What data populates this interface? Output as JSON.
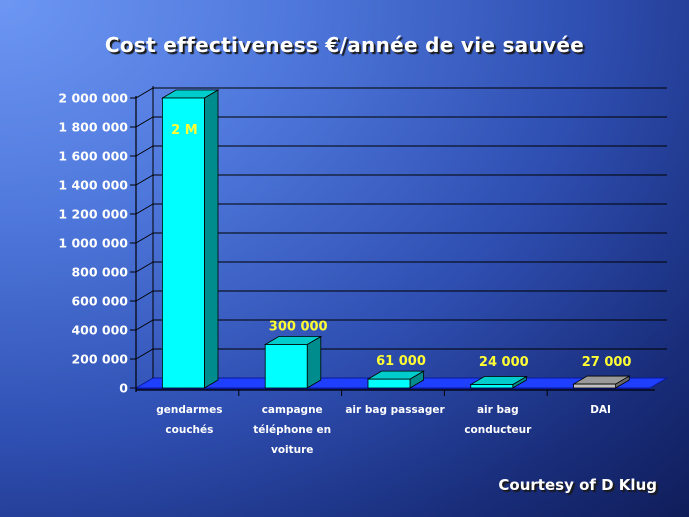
{
  "chart_data": {
    "type": "bar",
    "title": "Cost effectiveness €/année de vie sauvée",
    "categories": [
      [
        "gendarmes",
        "couchés"
      ],
      [
        "campagne",
        "téléphone en",
        "voiture"
      ],
      [
        "air bag passager"
      ],
      [
        "air bag",
        "conducteur"
      ],
      [
        "DAI"
      ]
    ],
    "values": [
      2000000,
      300000,
      61000,
      24000,
      27000
    ],
    "data_labels": [
      "2 M",
      "300 000",
      "61 000",
      "24 000",
      "27 000"
    ],
    "bar_colors": [
      "#00ffff",
      "#00ffff",
      "#00ffff",
      "#00ffff",
      "#c0c0c0"
    ],
    "yticks": [
      "0",
      "200 000",
      "400 000",
      "600 000",
      "800 000",
      "1 000 000",
      "1 200 000",
      "1 400 000",
      "1 600 000",
      "1 800 000",
      "2 000 000"
    ],
    "ylim": [
      0,
      2000000
    ],
    "xlabel": "",
    "ylabel": "",
    "grid": true,
    "colors": {
      "floor": "#1f3fff",
      "gridline": "#000000",
      "label": "#ffffff",
      "data_label": "#ffff33"
    }
  },
  "credit": "Courtesy of D Klug"
}
